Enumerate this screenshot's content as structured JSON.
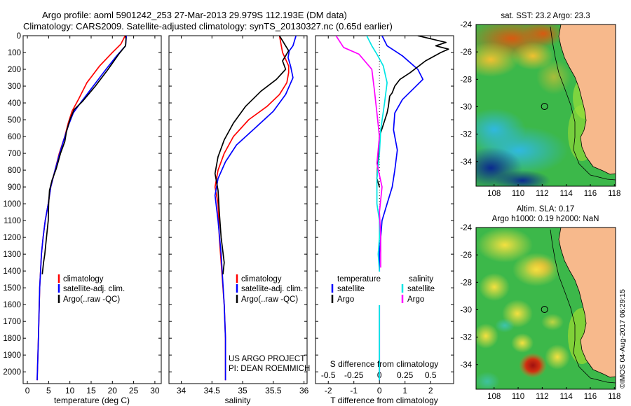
{
  "header": {
    "line1": "Argo profile: aoml 5901242_253 27-Mar-2013 29.979S 112.193E (DM data)",
    "line2": "Climatology: CARS2009. Satellite-adjusted climatology: synTS_20130327.nc (0.65d earlier)"
  },
  "project": {
    "line1": "US ARGO PROJECT",
    "line2": "PI: DEAN ROEMMICH"
  },
  "credit": "©IMOS 04-Aug-2017 06:29:15",
  "colors": {
    "climatology": "#ff0000",
    "satellite": "#0000ff",
    "argo": "#000000",
    "salinity_satellite": "#00e5e5",
    "salinity_argo": "#ff00ff",
    "land": "#f7b98c"
  },
  "chart_data": [
    {
      "type": "line",
      "name": "temperature-profile",
      "xlabel": "temperature (deg C)",
      "xlim": [
        -1,
        31.5
      ],
      "ylim": [
        2070,
        0
      ],
      "xticks": [
        "0",
        "5",
        "10",
        "15",
        "20",
        "25",
        "30"
      ],
      "yticks": [
        "0",
        "100",
        "200",
        "300",
        "400",
        "500",
        "600",
        "700",
        "800",
        "900",
        "1000",
        "1100",
        "1200",
        "1300",
        "1400",
        "1500",
        "1600",
        "1700",
        "1800",
        "1900",
        "2000"
      ],
      "legend": [
        "climatology",
        "satellite-adj. clim.",
        "Argo(..raw -QC)"
      ],
      "series": [
        {
          "name": "climatology",
          "x": [
            23.0,
            22.0,
            20.0,
            17.0,
            14.0,
            12.0,
            10.5,
            9.6,
            8.8,
            7.5,
            6.5,
            5.5,
            4.9,
            4.2,
            3.7,
            3.3,
            2.9,
            2.6,
            2.3
          ],
          "y": [
            0,
            50,
            100,
            180,
            280,
            380,
            450,
            520,
            600,
            700,
            800,
            900,
            1000,
            1100,
            1200,
            1300,
            1500,
            1800,
            2050
          ]
        },
        {
          "name": "satellite-adj. clim.",
          "x": [
            23.3,
            23.1,
            21.0,
            18.5,
            15.5,
            12.5,
            10.8,
            9.7,
            8.8,
            7.6,
            6.5,
            5.5,
            4.9,
            4.2,
            3.7,
            3.3,
            2.9,
            2.6,
            2.3
          ],
          "y": [
            0,
            60,
            120,
            200,
            300,
            400,
            460,
            530,
            600,
            700,
            800,
            900,
            1000,
            1100,
            1200,
            1300,
            1500,
            1800,
            2050
          ]
        },
        {
          "name": "Argo(..raw -QC)",
          "x": [
            23.1,
            23.2,
            23.1,
            21.5,
            19.0,
            16.0,
            13.0,
            11.0,
            10.0,
            9.2,
            8.8,
            7.8,
            6.8,
            5.8,
            5.2,
            5.0,
            4.9,
            4.5,
            4.1,
            3.8,
            3.5
          ],
          "y": [
            0,
            20,
            60,
            110,
            200,
            300,
            390,
            440,
            500,
            570,
            630,
            700,
            790,
            860,
            920,
            1000,
            1100,
            1200,
            1300,
            1350,
            1420
          ]
        }
      ]
    },
    {
      "type": "line",
      "name": "salinity-profile",
      "xlabel": "salinity",
      "xlim": [
        33.8,
        36.05
      ],
      "ylim": [
        2070,
        0
      ],
      "xticks": [
        "34",
        "34.5",
        "35",
        "35.5",
        "36"
      ],
      "legend": [
        "climatology",
        "satellite-adj. clim.",
        "Argo(..raw -QC)"
      ],
      "series": [
        {
          "name": "climatology",
          "x": [
            35.6,
            35.65,
            35.75,
            35.75,
            35.72,
            35.6,
            35.4,
            35.1,
            34.85,
            34.7,
            34.6,
            34.55,
            34.6,
            34.62,
            34.66,
            34.7,
            34.72,
            34.72
          ],
          "y": [
            0,
            100,
            180,
            220,
            280,
            350,
            420,
            500,
            600,
            700,
            800,
            900,
            1000,
            1200,
            1400,
            1600,
            1800,
            2050
          ]
        },
        {
          "name": "satellite-adj. clim.",
          "x": [
            35.87,
            35.82,
            35.76,
            35.74,
            35.78,
            35.82,
            35.7,
            35.5,
            35.2,
            34.9,
            34.72,
            34.6,
            34.55,
            34.6,
            34.65,
            34.7,
            34.72,
            34.72
          ],
          "y": [
            0,
            60,
            90,
            130,
            180,
            250,
            350,
            450,
            550,
            650,
            750,
            850,
            950,
            1100,
            1300,
            1600,
            1800,
            2050
          ]
        },
        {
          "name": "Argo(..raw -QC)",
          "x": [
            35.6,
            35.75,
            35.65,
            35.7,
            35.55,
            35.3,
            35.05,
            34.85,
            34.7,
            34.6,
            34.55,
            34.6,
            34.62,
            34.65,
            34.7,
            34.68
          ],
          "y": [
            0,
            90,
            150,
            200,
            260,
            330,
            420,
            520,
            620,
            720,
            820,
            920,
            1050,
            1200,
            1350,
            1420
          ]
        }
      ]
    },
    {
      "type": "line",
      "name": "difference-profile",
      "xlabel": "T difference from climatology",
      "xlabel_top": "S difference from climatology",
      "xlim": [
        -2.5,
        2.9
      ],
      "ylim": [
        2070,
        0
      ],
      "xticks_T": [
        "-2",
        "-1",
        "0",
        "1",
        "2"
      ],
      "xticks_S": [
        "-0.5",
        "-0.25",
        "0",
        "0.25",
        "0.5"
      ],
      "legend_title_T": "temperature",
      "legend_title_S": "salinity",
      "legend": [
        "satellite",
        "Argo",
        "satellite",
        "Argo"
      ],
      "series": [
        {
          "name": "temperature satellite",
          "x": [
            0.1,
            0.3,
            0.9,
            1.5,
            1.7,
            1.3,
            0.9,
            0.6,
            0.55,
            0.7,
            0.6,
            0.5,
            0.3,
            0.1,
            0.0,
            0.0,
            0.0
          ],
          "y": [
            0,
            60,
            120,
            200,
            260,
            320,
            380,
            460,
            560,
            680,
            800,
            900,
            1000,
            1100,
            1300,
            1600,
            2050
          ]
        },
        {
          "name": "temperature Argo",
          "x": [
            1.5,
            2.6,
            2.2,
            2.7,
            2.4,
            1.8,
            1.2,
            0.8,
            0.6,
            0.5,
            0.4,
            0.35,
            0.3,
            0.0,
            -0.1,
            0.0
          ],
          "y": [
            0,
            40,
            60,
            80,
            100,
            150,
            220,
            260,
            300,
            340,
            360,
            420,
            460,
            600,
            850,
            900
          ]
        },
        {
          "name": "salinity satellite",
          "x": [
            -0.5,
            -0.3,
            -0.1,
            0.15,
            0.3,
            0.2,
            0.05,
            0.0,
            -0.1,
            -0.1,
            0.0,
            0.0,
            -0.05,
            0.0,
            0.0,
            0.0
          ],
          "y": [
            0,
            60,
            110,
            180,
            280,
            400,
            560,
            700,
            850,
            1000,
            1100,
            1200,
            1300,
            1400,
            1700,
            2050
          ]
        },
        {
          "name": "salinity Argo",
          "x": [
            -1.7,
            -1.4,
            -0.8,
            -0.3,
            -0.2,
            -0.1,
            0.0,
            -0.1,
            0.1,
            0.0,
            0.05,
            0.05
          ],
          "y": [
            0,
            70,
            110,
            200,
            320,
            460,
            600,
            760,
            900,
            1050,
            1200,
            1380
          ]
        }
      ]
    },
    {
      "type": "heatmap",
      "name": "sst-map",
      "title": "sat. SST: 23.2  Argo: 23.3",
      "xticks": [
        "108",
        "110",
        "112",
        "114",
        "116",
        "118"
      ],
      "yticks": [
        "-24",
        "-26",
        "-28",
        "-30",
        "-32",
        "-34"
      ],
      "xlim": [
        106.5,
        118.1
      ],
      "ylim": [
        -35.8,
        -24
      ],
      "argo_position": {
        "lon": 112.193,
        "lat": -29.979
      }
    },
    {
      "type": "heatmap",
      "name": "sla-map",
      "title": "Altim. SLA: 0.17",
      "subtitle": "Argo h1000: 0.19 h2000: NaN",
      "xticks": [
        "108",
        "110",
        "112",
        "114",
        "116",
        "118"
      ],
      "yticks": [
        "-24",
        "-26",
        "-28",
        "-30",
        "-32",
        "-34"
      ],
      "xlim": [
        106.5,
        118.1
      ],
      "ylim": [
        -35.8,
        -24
      ],
      "argo_position": {
        "lon": 112.193,
        "lat": -29.979
      }
    }
  ]
}
